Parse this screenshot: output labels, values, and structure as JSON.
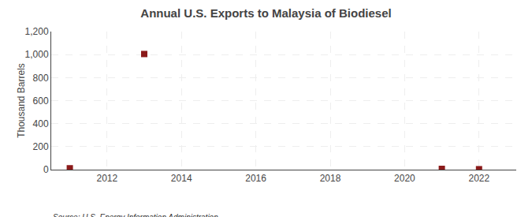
{
  "chart_data": {
    "type": "scatter",
    "title": "Annual U.S. Exports to Malaysia of Biodiesel",
    "ylabel": "Thousand Barrels",
    "annotations": [
      "Source: U.S. Energy Information Administration"
    ],
    "x": [
      2011,
      2013,
      2021,
      2022
    ],
    "values": [
      12,
      1005,
      7,
      4
    ],
    "color": "#8B1A1A",
    "marker": "square",
    "xlim": [
      2010.5,
      2023.0
    ],
    "ylim": [
      0,
      1200
    ],
    "xticks": [
      2012,
      2014,
      2016,
      2018,
      2020,
      2022
    ],
    "yticks": [
      0,
      200,
      400,
      600,
      800,
      {
        "value": 1000,
        "label": "1,000"
      },
      {
        "value": 1200,
        "label": "1,200"
      }
    ],
    "grid": true
  }
}
